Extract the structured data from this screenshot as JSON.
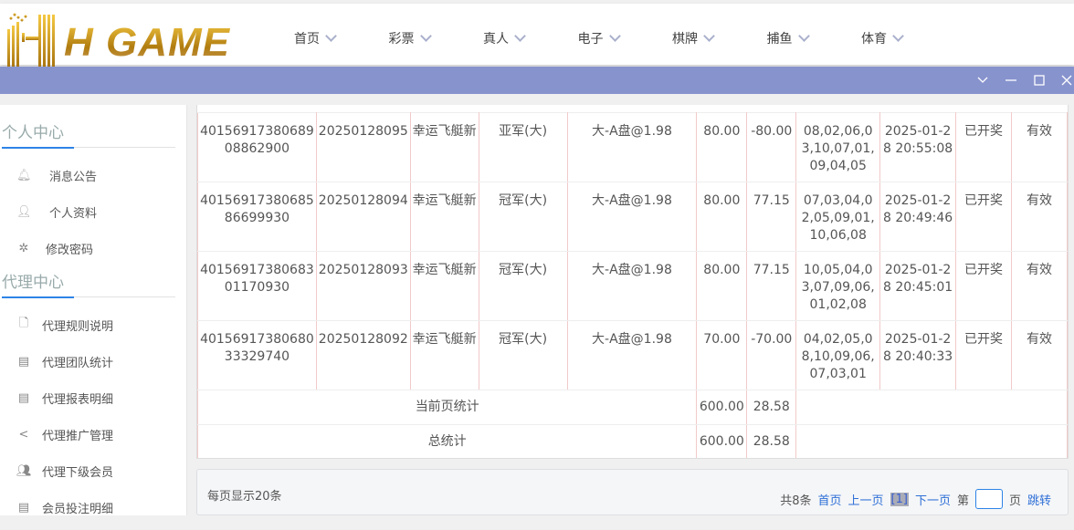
{
  "logo": {
    "text": "H GAME"
  },
  "nav": [
    {
      "label": "首页"
    },
    {
      "label": "彩票"
    },
    {
      "label": "真人"
    },
    {
      "label": "电子"
    },
    {
      "label": "棋牌"
    },
    {
      "label": "捕鱼"
    },
    {
      "label": "体育"
    }
  ],
  "colors": {
    "window_bar": "#8793cd",
    "accent": "#2d83e6",
    "link": "#2d6fd6"
  },
  "sidebar": {
    "personal_title": "个人中心",
    "personal_items": [
      {
        "label": "消息公告",
        "icon": "bell-icon"
      },
      {
        "label": "个人资料",
        "icon": "user-icon"
      },
      {
        "label": "修改密码",
        "icon": "gear-icon"
      }
    ],
    "agent_title": "代理中心",
    "agent_items": [
      {
        "label": "代理规则说明",
        "icon": "file-icon"
      },
      {
        "label": "代理团队统计",
        "icon": "book-icon"
      },
      {
        "label": "代理报表明细",
        "icon": "book-icon"
      },
      {
        "label": "代理推广管理",
        "icon": "share-icon"
      },
      {
        "label": "代理下级会员",
        "icon": "users-icon"
      },
      {
        "label": "会员投注明细",
        "icon": "list-icon"
      }
    ]
  },
  "table": {
    "rows": [
      [
        "4015691738068908862900",
        "20250128095",
        "幸运飞艇新",
        "亚军(大)",
        "大-A盘@1.98",
        "80.00",
        "-80.00",
        "08,02,06,03,10,07,01,09,04,05",
        "2025-01-28 20:55:08",
        "已开奖",
        "有效"
      ],
      [
        "4015691738068586699930",
        "20250128094",
        "幸运飞艇新",
        "冠军(大)",
        "大-A盘@1.98",
        "80.00",
        "77.15",
        "07,03,04,02,05,09,01,10,06,08",
        "2025-01-28 20:49:46",
        "已开奖",
        "有效"
      ],
      [
        "4015691738068301170930",
        "20250128093",
        "幸运飞艇新",
        "冠军(大)",
        "大-A盘@1.98",
        "80.00",
        "77.15",
        "10,05,04,03,07,09,06,01,02,08",
        "2025-01-28 20:45:01",
        "已开奖",
        "有效"
      ],
      [
        "4015691738068033329740",
        "20250128092",
        "幸运飞艇新",
        "冠军(大)",
        "大-A盘@1.98",
        "70.00",
        "-70.00",
        "04,02,05,08,10,09,06,07,03,01",
        "2025-01-28 20:40:33",
        "已开奖",
        "有效"
      ]
    ],
    "page_total": {
      "label": "当前页统计",
      "amount": "600.00",
      "profit": "28.58"
    },
    "grand_total": {
      "label": "总统计",
      "amount": "600.00",
      "profit": "28.58"
    }
  },
  "pager": {
    "per_page": "每页显示20条",
    "total": "共8条",
    "first": "首页",
    "prev": "上一页",
    "current": "[1]",
    "next": "下一页",
    "page_prefix": "第",
    "page_input": "",
    "page_suffix": "页",
    "jump": "跳转"
  }
}
